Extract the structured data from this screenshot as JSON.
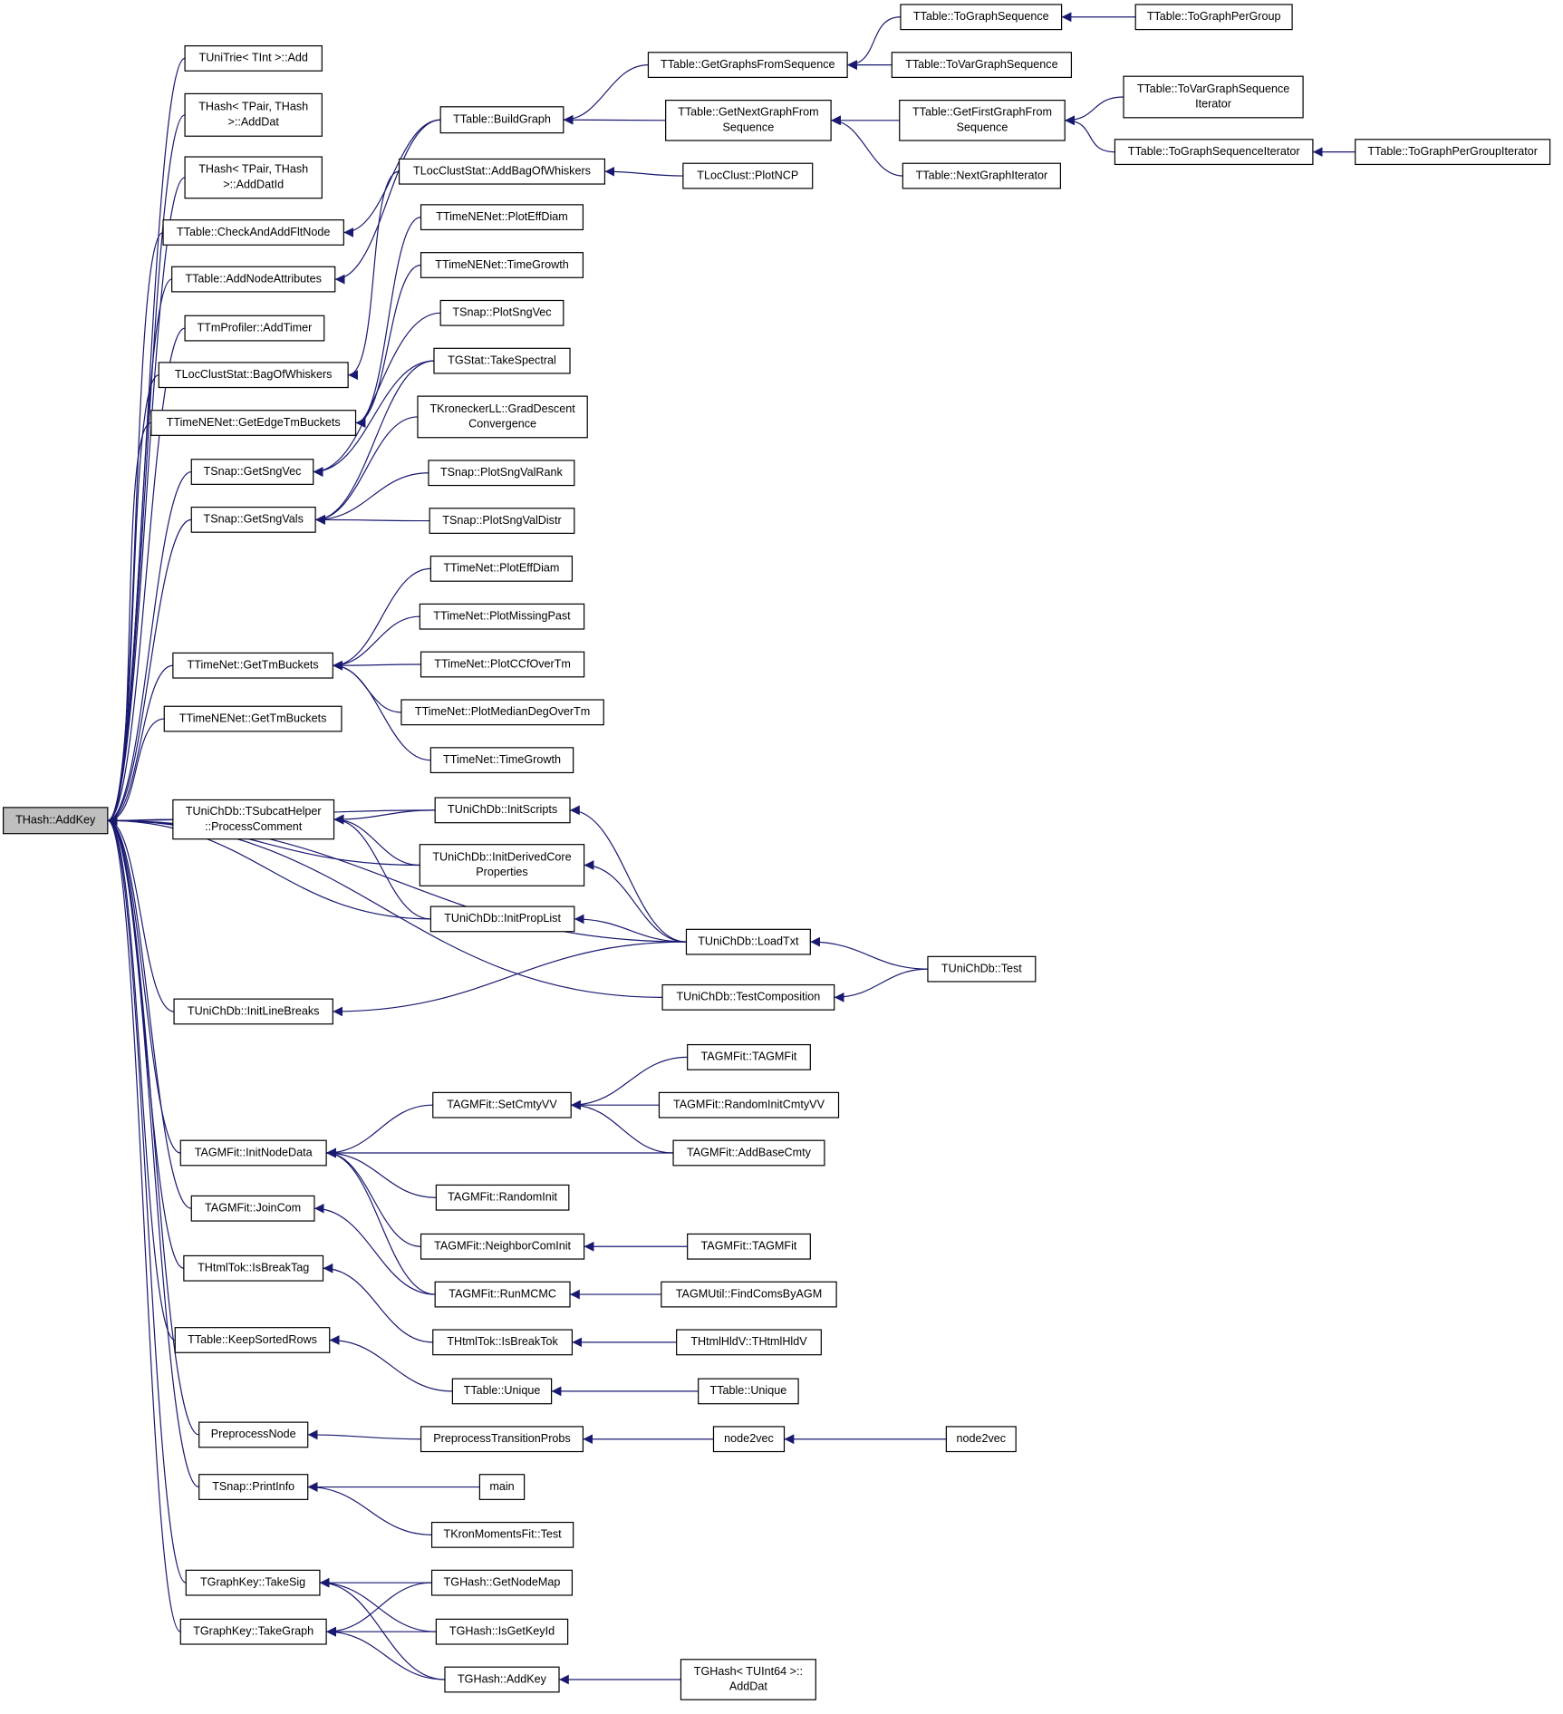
{
  "nodes": [
    {
      "lines": [
        "THash::AddKey"
      ]
    },
    {
      "lines": [
        "TUniTrie< TInt >::Add"
      ]
    },
    {
      "lines": [
        "THash< TPair, THash",
        ">::AddDat"
      ]
    },
    {
      "lines": [
        "THash< TPair, THash",
        ">::AddDatId"
      ]
    },
    {
      "lines": [
        "TTable::CheckAndAddFltNode"
      ]
    },
    {
      "lines": [
        "TTable::AddNodeAttributes"
      ]
    },
    {
      "lines": [
        "TTmProfiler::AddTimer"
      ]
    },
    {
      "lines": [
        "TLocClustStat::BagOfWhiskers"
      ]
    },
    {
      "lines": [
        "TTimeNENet::GetEdgeTmBuckets"
      ]
    },
    {
      "lines": [
        "TSnap::GetSngVec"
      ]
    },
    {
      "lines": [
        "TSnap::GetSngVals"
      ]
    },
    {
      "lines": [
        "TTimeNet::GetTmBuckets"
      ]
    },
    {
      "lines": [
        "TTimeNENet::GetTmBuckets"
      ]
    },
    {
      "lines": [
        "TUniChDb::TSubcatHelper",
        "::ProcessComment"
      ]
    },
    {
      "lines": [
        "TUniChDb::InitLineBreaks"
      ]
    },
    {
      "lines": [
        "TAGMFit::InitNodeData"
      ]
    },
    {
      "lines": [
        "TAGMFit::JoinCom"
      ]
    },
    {
      "lines": [
        "THtmlTok::IsBreakTag"
      ]
    },
    {
      "lines": [
        "TTable::KeepSortedRows"
      ]
    },
    {
      "lines": [
        "PreprocessNode"
      ]
    },
    {
      "lines": [
        "TSnap::PrintInfo"
      ]
    },
    {
      "lines": [
        "TGraphKey::TakeSig"
      ]
    },
    {
      "lines": [
        "TGraphKey::TakeGraph"
      ]
    },
    {
      "lines": [
        "TTable::BuildGraph"
      ]
    },
    {
      "lines": [
        "TLocClustStat::AddBagOfWhiskers"
      ]
    },
    {
      "lines": [
        "TTimeNENet::PlotEffDiam"
      ]
    },
    {
      "lines": [
        "TTimeNENet::TimeGrowth"
      ]
    },
    {
      "lines": [
        "TSnap::PlotSngVec"
      ]
    },
    {
      "lines": [
        "TGStat::TakeSpectral"
      ]
    },
    {
      "lines": [
        "TKroneckerLL::GradDescent",
        "Convergence"
      ]
    },
    {
      "lines": [
        "TSnap::PlotSngValRank"
      ]
    },
    {
      "lines": [
        "TSnap::PlotSngValDistr"
      ]
    },
    {
      "lines": [
        "TTimeNet::PlotEffDiam"
      ]
    },
    {
      "lines": [
        "TTimeNet::PlotMissingPast"
      ]
    },
    {
      "lines": [
        "TTimeNet::PlotCCfOverTm"
      ]
    },
    {
      "lines": [
        "TTimeNet::PlotMedianDegOverTm"
      ]
    },
    {
      "lines": [
        "TTimeNet::TimeGrowth"
      ]
    },
    {
      "lines": [
        "TUniChDb::InitScripts"
      ]
    },
    {
      "lines": [
        "TUniChDb::InitDerivedCore",
        "Properties"
      ]
    },
    {
      "lines": [
        "TUniChDb::InitPropList"
      ]
    },
    {
      "lines": [
        "TAGMFit::SetCmtyVV"
      ]
    },
    {
      "lines": [
        "TAGMFit::RandomInit"
      ]
    },
    {
      "lines": [
        "TAGMFit::NeighborComInit"
      ]
    },
    {
      "lines": [
        "TAGMFit::RunMCMC"
      ]
    },
    {
      "lines": [
        "THtmlTok::IsBreakTok"
      ]
    },
    {
      "lines": [
        "TTable::Unique"
      ]
    },
    {
      "lines": [
        "PreprocessTransitionProbs"
      ]
    },
    {
      "lines": [
        "main"
      ]
    },
    {
      "lines": [
        "TKronMomentsFit::Test"
      ]
    },
    {
      "lines": [
        "TGHash::GetNodeMap"
      ]
    },
    {
      "lines": [
        "TGHash::IsGetKeyId"
      ]
    },
    {
      "lines": [
        "TGHash::AddKey"
      ]
    },
    {
      "lines": [
        "TTable::GetGraphsFromSequence"
      ]
    },
    {
      "lines": [
        "TTable::GetNextGraphFrom",
        "Sequence"
      ]
    },
    {
      "lines": [
        "TLocClust::PlotNCP"
      ]
    },
    {
      "lines": [
        "TUniChDb::LoadTxt"
      ]
    },
    {
      "lines": [
        "TUniChDb::TestComposition"
      ]
    },
    {
      "lines": [
        "TAGMFit::TAGMFit"
      ]
    },
    {
      "lines": [
        "TAGMFit::RandomInitCmtyVV"
      ]
    },
    {
      "lines": [
        "TAGMFit::AddBaseCmty"
      ]
    },
    {
      "lines": [
        "TAGMFit::TAGMFit"
      ]
    },
    {
      "lines": [
        "TAGMUtil::FindComsByAGM"
      ]
    },
    {
      "lines": [
        "THtmlHldV::THtmlHldV"
      ]
    },
    {
      "lines": [
        "TTable::Unique"
      ]
    },
    {
      "lines": [
        "node2vec"
      ]
    },
    {
      "lines": [
        "TGHash< TUInt64 >::",
        "AddDat"
      ]
    },
    {
      "lines": [
        "TTable::ToGraphSequence"
      ]
    },
    {
      "lines": [
        "TTable::ToVarGraphSequence"
      ]
    },
    {
      "lines": [
        "TTable::GetFirstGraphFrom",
        "Sequence"
      ]
    },
    {
      "lines": [
        "TTable::NextGraphIterator"
      ]
    },
    {
      "lines": [
        "TUniChDb::Test"
      ]
    },
    {
      "lines": [
        "node2vec"
      ]
    },
    {
      "lines": [
        "TTable::ToGraphPerGroup"
      ]
    },
    {
      "lines": [
        "TTable::ToVarGraphSequence",
        "Iterator"
      ]
    },
    {
      "lines": [
        "TTable::ToGraphSequenceIterator"
      ]
    },
    {
      "lines": [
        "TTable::ToGraphPerGroupIterator"
      ]
    }
  ]
}
